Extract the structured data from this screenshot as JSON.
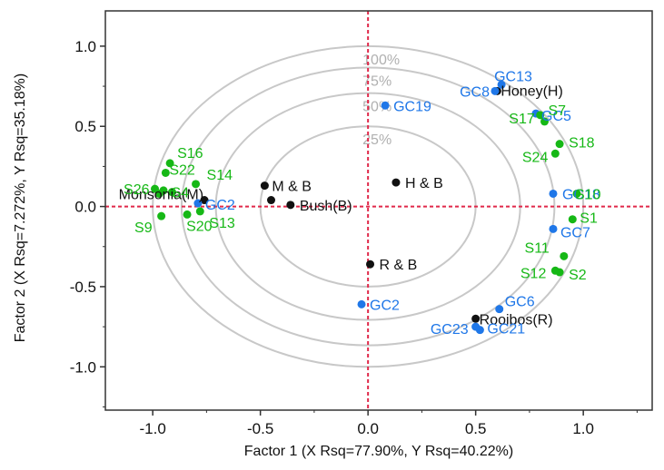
{
  "chart_data": {
    "type": "scatter",
    "xlabel": "Factor 1 (X Rsq=77.90%, Y Rsq=40.22%)",
    "ylabel": "Factor 2 (X Rsq=7.272%, Y Rsq=35.18%)",
    "xlim": [
      -1.22,
      1.32
    ],
    "ylim": [
      -1.27,
      1.22
    ],
    "x_ticks": [
      -1.0,
      -0.5,
      0.0,
      0.5,
      1.0
    ],
    "y_ticks": [
      1.0,
      0.5,
      0.0,
      -0.5,
      -1.0
    ],
    "x_tick_labels": [
      "-1.0",
      "-0.5",
      "0.0",
      "0.5",
      "1.0"
    ],
    "y_tick_labels": [
      "1.0",
      "0.5",
      "0.0",
      "-0.5",
      "-1.0"
    ],
    "reference_lines": {
      "x": 0,
      "y": 0,
      "color": "#e0294a"
    },
    "circles": [
      {
        "r": 0.5,
        "label": "25%"
      },
      {
        "r": 0.707,
        "label": "50%"
      },
      {
        "r": 0.866,
        "label": "75%"
      },
      {
        "r": 1.0,
        "label": "100%"
      }
    ],
    "colors": {
      "black": "#111111",
      "blue": "#1f77e8",
      "green": "#16b816",
      "circle": "#c8c8c8",
      "frame": "#333333"
    },
    "series": [
      {
        "color_key": "black",
        "points": [
          {
            "label": "Honey(H)",
            "x": 0.6,
            "y": 0.72
          },
          {
            "label": "M & B",
            "x": -0.48,
            "y": 0.13
          },
          {
            "label": "",
            "x": -0.45,
            "y": 0.04
          },
          {
            "label": "Monsonia(M)",
            "x": -0.76,
            "y": 0.04
          },
          {
            "label": "Bush(B)",
            "x": -0.36,
            "y": 0.01
          },
          {
            "label": "H & B",
            "x": 0.13,
            "y": 0.15
          },
          {
            "label": "R & B",
            "x": 0.01,
            "y": -0.36
          },
          {
            "label": "Rooibos(R)",
            "x": 0.5,
            "y": -0.7
          }
        ]
      },
      {
        "color_key": "blue",
        "points": [
          {
            "label": "GC13",
            "x": 0.62,
            "y": 0.76
          },
          {
            "label": "GC8",
            "x": 0.59,
            "y": 0.72
          },
          {
            "label": "GC19",
            "x": 0.08,
            "y": 0.63
          },
          {
            "label": "GC5",
            "x": 0.78,
            "y": 0.58
          },
          {
            "label": "GC18",
            "x": 0.86,
            "y": 0.08
          },
          {
            "label": "GC7",
            "x": 0.86,
            "y": -0.14
          },
          {
            "label": "GC2",
            "x": -0.79,
            "y": 0.02
          },
          {
            "label": "GC2",
            "x": -0.03,
            "y": -0.61
          },
          {
            "label": "GC6",
            "x": 0.61,
            "y": -0.64
          },
          {
            "label": "GC21",
            "x": 0.52,
            "y": -0.77
          },
          {
            "label": "GC23",
            "x": 0.5,
            "y": -0.75
          }
        ]
      },
      {
        "color_key": "green",
        "points": [
          {
            "label": "S17",
            "x": 0.8,
            "y": 0.57
          },
          {
            "label": "S7",
            "x": 0.82,
            "y": 0.53
          },
          {
            "label": "S18",
            "x": 0.89,
            "y": 0.39
          },
          {
            "label": "S24",
            "x": 0.87,
            "y": 0.33
          },
          {
            "label": "S10",
            "x": 0.97,
            "y": 0.08
          },
          {
            "label": "S1",
            "x": 0.95,
            "y": -0.08
          },
          {
            "label": "S11",
            "x": 0.91,
            "y": -0.31
          },
          {
            "label": "S12",
            "x": 0.87,
            "y": -0.4
          },
          {
            "label": "S2",
            "x": 0.89,
            "y": -0.41
          },
          {
            "label": "S16",
            "x": -0.92,
            "y": 0.27
          },
          {
            "label": "S22",
            "x": -0.94,
            "y": 0.21
          },
          {
            "label": "S14",
            "x": -0.8,
            "y": 0.14
          },
          {
            "label": "S26",
            "x": -0.99,
            "y": 0.11
          },
          {
            "label": "S4",
            "x": -0.91,
            "y": 0.09
          },
          {
            "label": "",
            "x": -0.95,
            "y": 0.1
          },
          {
            "label": "",
            "x": -0.97,
            "y": 0.08
          },
          {
            "label": "S9",
            "x": -0.96,
            "y": -0.06
          },
          {
            "label": "S20",
            "x": -0.84,
            "y": -0.05
          },
          {
            "label": "S13",
            "x": -0.78,
            "y": -0.03
          }
        ]
      }
    ]
  }
}
